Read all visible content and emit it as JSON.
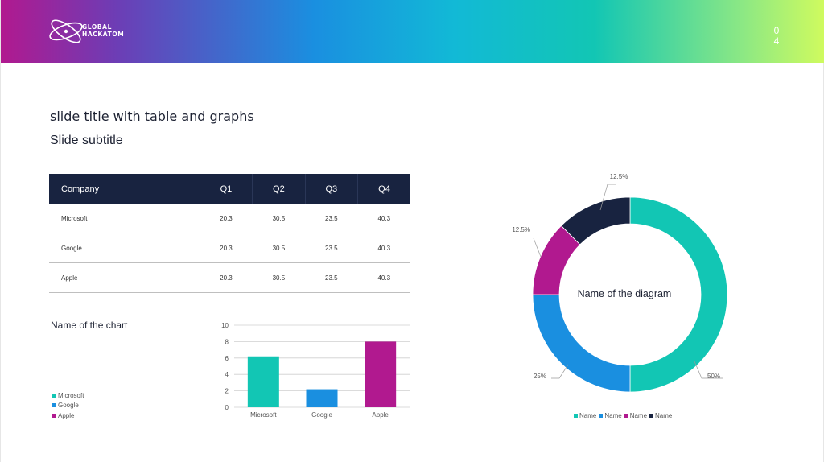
{
  "header": {
    "logo_line1": "GLOBAL",
    "logo_line2": "HACKATOM",
    "page_digit1": "0",
    "page_digit2": "4",
    "colors": [
      "#b1198f",
      "#1a8fe0",
      "#12c6b4",
      "#d0fb5e"
    ]
  },
  "slide": {
    "title": "slide title with table and graphs",
    "subtitle": "Slide subtitle"
  },
  "table": {
    "headers": [
      "Company",
      "Q1",
      "Q2",
      "Q3",
      "Q4"
    ],
    "rows": [
      [
        "Microsoft",
        "20.3",
        "30.5",
        "23.5",
        "40.3"
      ],
      [
        "Google",
        "20.3",
        "30.5",
        "23.5",
        "40.3"
      ],
      [
        "Apple",
        "20.3",
        "30.5",
        "23.5",
        "40.3"
      ]
    ]
  },
  "chart_data": [
    {
      "type": "bar",
      "title": "Name of the chart",
      "categories": [
        "Microsoft",
        "Google",
        "Apple"
      ],
      "values": [
        6.2,
        2.2,
        8
      ],
      "colors": [
        "#12c6b4",
        "#1a8fe0",
        "#b1198f"
      ],
      "legend": [
        "Microsoft",
        "Google",
        "Apple"
      ],
      "legend_position": "left",
      "ylim": [
        0,
        10
      ],
      "yticks": [
        "0",
        "2",
        "4",
        "6",
        "8",
        "10"
      ],
      "grid": true
    },
    {
      "type": "pie",
      "variant": "donut",
      "title": "Name of the diagram",
      "labels": [
        "Name",
        "Name",
        "Name",
        "Name"
      ],
      "values": [
        50,
        25,
        12.5,
        12.5
      ],
      "value_labels": [
        "50%",
        "25%",
        "12.5%",
        "12.5%"
      ],
      "colors": [
        "#12c6b4",
        "#1a8fe0",
        "#b1198f",
        "#182340"
      ],
      "legend_position": "bottom"
    }
  ]
}
